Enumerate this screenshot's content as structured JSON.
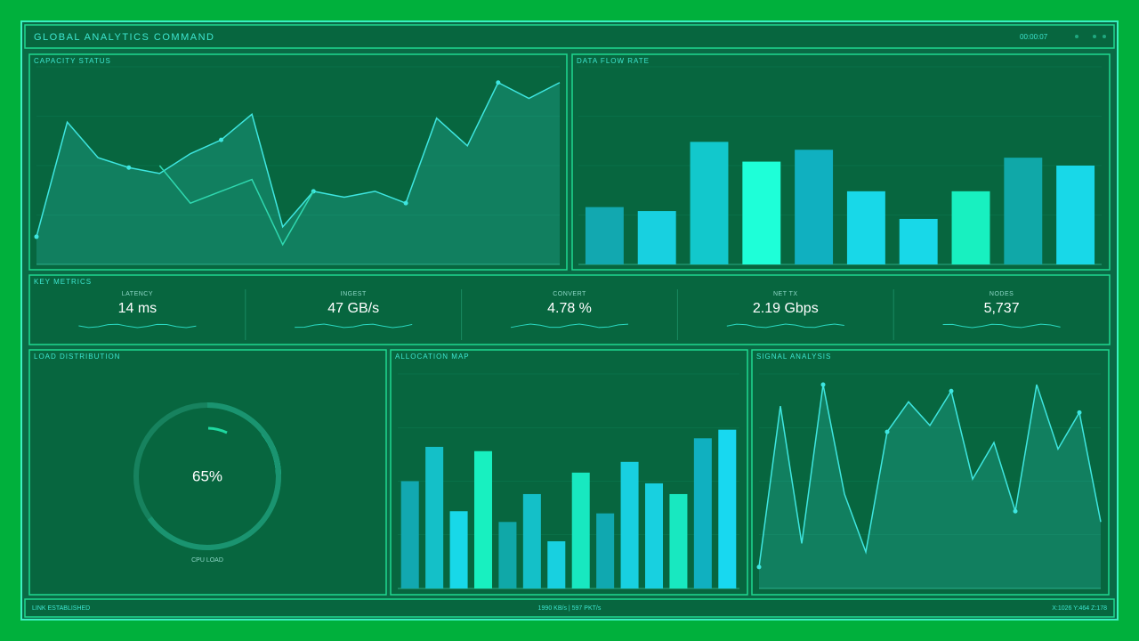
{
  "header": {
    "title": "GLOBAL ANALYTICS COMMAND",
    "clock": "00:00:07"
  },
  "capacity": {
    "title": "CAPACITY STATUS",
    "chart_data": {
      "type": "line",
      "ylim": [
        0,
        100
      ],
      "series": [
        {
          "color": "#3ee6e0",
          "values": [
            14,
            72,
            54,
            49,
            46,
            56,
            63,
            76,
            19,
            37,
            34,
            37,
            31,
            74,
            60,
            92,
            84,
            92
          ]
        },
        {
          "color": "#2fd8b0",
          "values": [
            null,
            null,
            null,
            null,
            50,
            31,
            37,
            43,
            10,
            37,
            null,
            null,
            null,
            null,
            null,
            null,
            null,
            null
          ]
        }
      ]
    }
  },
  "flow": {
    "title": "DATA FLOW RATE",
    "chart_data": {
      "type": "bar",
      "ylim": [
        0,
        100
      ],
      "values": [
        29,
        27,
        62,
        52,
        58,
        37,
        23,
        37,
        54,
        50
      ],
      "colors": [
        "#12a8b0",
        "#18d0e0",
        "#12c8cc",
        "#1effd8",
        "#10b0c0",
        "#18d8e8",
        "#18d8e8",
        "#18f0c0",
        "#10a8a8",
        "#18d8e8"
      ]
    }
  },
  "metrics": {
    "title": "KEY METRICS",
    "items": [
      {
        "label": "LATENCY",
        "value": "14 ms"
      },
      {
        "label": "INGEST",
        "value": "47 GB/s"
      },
      {
        "label": "CONVERT",
        "value": "4.78 %"
      },
      {
        "label": "NET TX",
        "value": "2.19 Gbps"
      },
      {
        "label": "NODES",
        "value": "5,737"
      }
    ]
  },
  "load": {
    "title": "LOAD DISTRIBUTION",
    "value": 65,
    "value_label": "65%",
    "label": "CPU LOAD"
  },
  "allocation": {
    "title": "ALLOCATION MAP",
    "chart_data": {
      "type": "bar",
      "ylim": [
        0,
        100
      ],
      "values": [
        50,
        66,
        36,
        64,
        31,
        44,
        22,
        54,
        35,
        59,
        49,
        44,
        70,
        74
      ],
      "colors": [
        "#12a8b0",
        "#14c0c8",
        "#18d8e8",
        "#18f0c0",
        "#10a8a8",
        "#14c0c8",
        "#18d0e0",
        "#18e8c0",
        "#10a8b0",
        "#18d0e0",
        "#18d0e0",
        "#18e8c0",
        "#10b0c0",
        "#18d8f0"
      ]
    }
  },
  "signal": {
    "title": "SIGNAL ANALYSIS",
    "chart_data": {
      "type": "line",
      "ylim": [
        0,
        100
      ],
      "series": [
        {
          "color": "#3ee6e0",
          "values": [
            10,
            85,
            21,
            95,
            44,
            17,
            73,
            87,
            76,
            92,
            51,
            68,
            36,
            95,
            65,
            82,
            31
          ]
        }
      ]
    }
  },
  "footer": {
    "left": "LINK ESTABLISHED",
    "center": "1990 KB/s | 597 PKT/s",
    "right": "X:1026 Y:464 Z:178"
  }
}
